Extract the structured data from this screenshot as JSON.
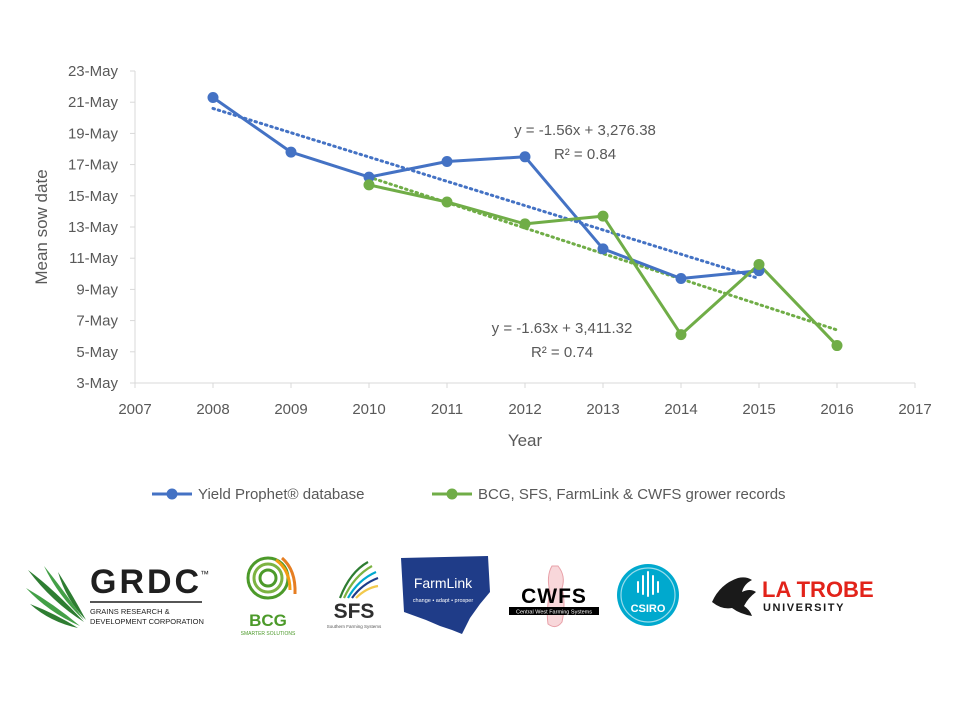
{
  "chart_data": {
    "type": "line",
    "title": "",
    "xlabel": "Year",
    "ylabel": "Mean sow date",
    "xlim": [
      2007,
      2017
    ],
    "x_ticks": [
      "2007",
      "2008",
      "2009",
      "2010",
      "2011",
      "2012",
      "2013",
      "2014",
      "2015",
      "2016",
      "2017"
    ],
    "ylim": [
      3,
      23
    ],
    "y_ticks": [
      "3-May",
      "5-May",
      "7-May",
      "9-May",
      "11-May",
      "13-May",
      "15-May",
      "17-May",
      "19-May",
      "21-May",
      "23-May"
    ],
    "grid": false,
    "legend_position": "bottom",
    "series": [
      {
        "name": "Yield Prophet® database",
        "color": "#4472C4",
        "x": [
          2008,
          2009,
          2010,
          2011,
          2012,
          2013,
          2014,
          2015
        ],
        "y": [
          21.3,
          17.8,
          16.2,
          17.2,
          17.5,
          11.6,
          9.7,
          10.2
        ],
        "trendline": {
          "equation": "y = -1.56x + 3,276.38",
          "r2": "R² = 0.84",
          "x": [
            2008,
            2015
          ],
          "y": [
            20.6,
            9.7
          ]
        }
      },
      {
        "name": "BCG, SFS, FarmLink & CWFS grower records",
        "color": "#70AD47",
        "x": [
          2010,
          2011,
          2012,
          2013,
          2014,
          2015,
          2016
        ],
        "y": [
          15.7,
          14.6,
          13.2,
          13.7,
          6.1,
          10.6,
          5.4
        ],
        "trendline": {
          "equation": "y = -1.63x + 3,411.32",
          "r2": "R² = 0.74",
          "x": [
            2010,
            2016
          ],
          "y": [
            16.2,
            6.4
          ]
        }
      }
    ]
  },
  "logos": [
    {
      "name": "GRDC",
      "line1": "GRAINS RESEARCH &",
      "line2": "DEVELOPMENT CORPORATION",
      "tm": "™",
      "color": "#1E4620"
    },
    {
      "name": "BCG",
      "sub": "SMARTER SOLUTIONS",
      "color": "#4C9A2A"
    },
    {
      "name": "SFS",
      "sub": "Southern Farming Systems",
      "color": "#2F2F2F"
    },
    {
      "name": "FarmLink",
      "sub": "change • adapt • prosper",
      "color": "#1F3C88"
    },
    {
      "name": "CWFS",
      "sub": "Central West Farming Systems",
      "color": "#000000"
    },
    {
      "name": "CSIRO",
      "color": "#00A9CE"
    },
    {
      "name": "LA TROBE",
      "sub": "UNIVERSITY",
      "color": "#E2231A"
    }
  ]
}
